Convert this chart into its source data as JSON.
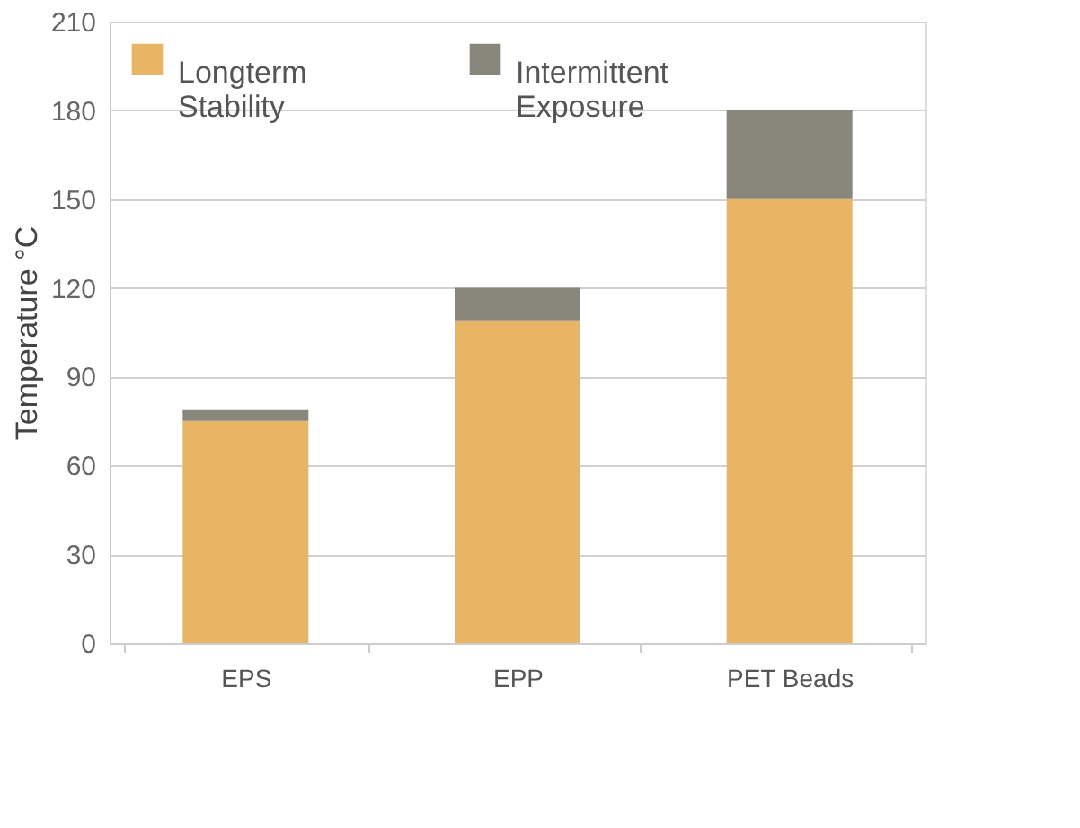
{
  "chart_data": {
    "type": "bar",
    "stacked": true,
    "ylabel": "Temperature °C",
    "categories": [
      "EPS",
      "EPP",
      "PET Beads"
    ],
    "series": [
      {
        "name": "Longterm Stability",
        "color": "#e8b566",
        "values": [
          75,
          109,
          150
        ]
      },
      {
        "name": "Intermittent Exposure",
        "color": "#89867c",
        "values": [
          4,
          11,
          30
        ]
      }
    ],
    "ylim": [
      0,
      210
    ],
    "yticks": [
      0,
      30,
      60,
      90,
      120,
      150,
      180,
      210
    ],
    "grid": "y",
    "legend": "top left"
  }
}
